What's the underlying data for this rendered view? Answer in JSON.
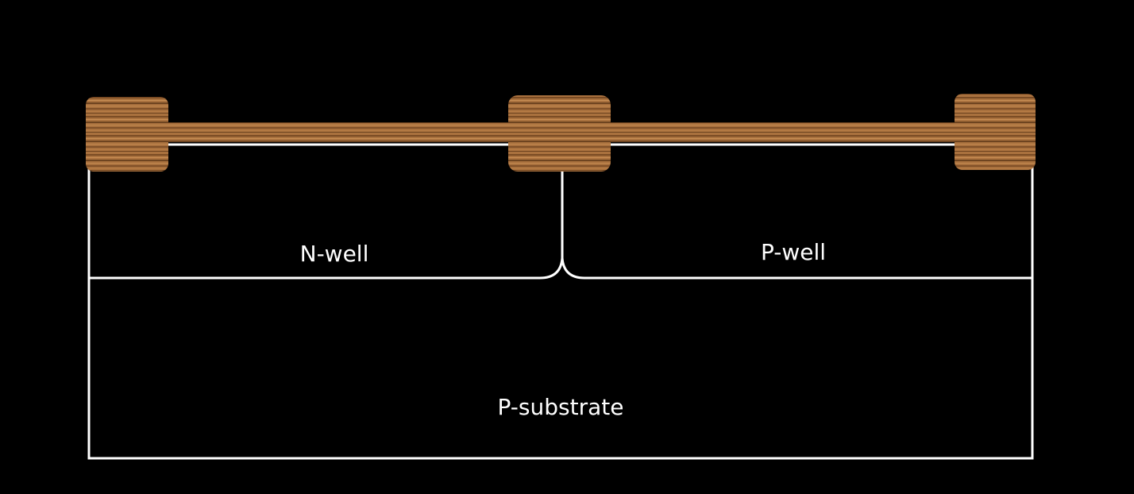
{
  "diagram": {
    "regions": {
      "nwell": "N-well",
      "pwell": "P-well",
      "psubstrate": "P-substrate"
    },
    "colors": {
      "background": "#000000",
      "outline": "#ffffff",
      "label_text": "#ffffff",
      "wood_base": "#a9713e",
      "wood_dark": "#6e4420",
      "wood_light": "#c98f55"
    }
  }
}
